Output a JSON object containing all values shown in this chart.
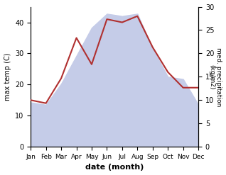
{
  "months": [
    "Jan",
    "Feb",
    "Mar",
    "Apr",
    "May",
    "Jun",
    "Jul",
    "Aug",
    "Sep",
    "Oct",
    "Nov",
    "Dec"
  ],
  "month_x": [
    1,
    2,
    3,
    4,
    5,
    6,
    7,
    8,
    9,
    10,
    11,
    12
  ],
  "temperature": [
    15.0,
    14.0,
    22.0,
    35.0,
    26.5,
    41.0,
    40.0,
    42.0,
    32.0,
    24.0,
    19.0,
    19.0
  ],
  "precipitation": [
    9.5,
    9.0,
    13.5,
    19.5,
    25.5,
    28.5,
    28.0,
    28.5,
    21.0,
    15.0,
    14.5,
    9.0
  ],
  "temp_color": "#b03030",
  "precip_fill_color": "#c5cce8",
  "ylabel_left": "max temp (C)",
  "ylabel_right": "med. precipitation\n(kg/m2)",
  "xlabel": "date (month)",
  "ylim_left": [
    0,
    45
  ],
  "ylim_right": [
    0,
    30
  ],
  "yticks_left": [
    0,
    10,
    20,
    30,
    40
  ],
  "yticks_right": [
    0,
    5,
    10,
    15,
    20,
    25,
    30
  ],
  "background_color": "#ffffff",
  "figsize": [
    3.18,
    2.47
  ],
  "dpi": 100
}
